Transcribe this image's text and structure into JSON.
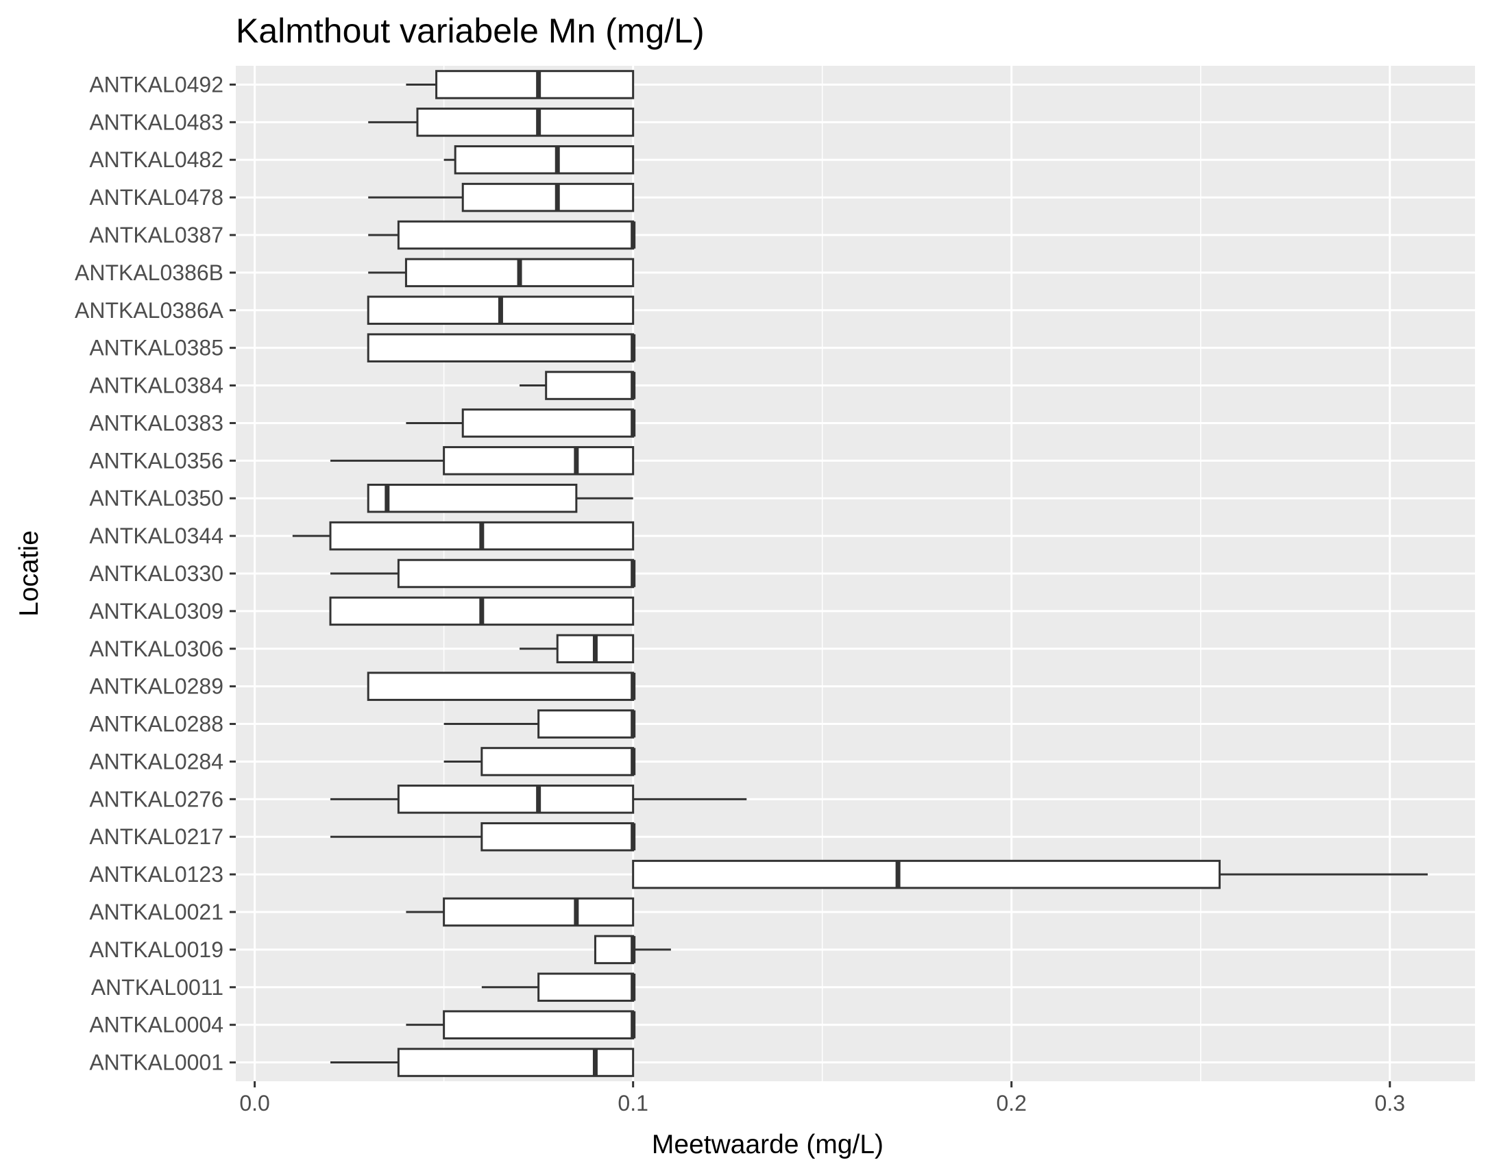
{
  "chart_data": {
    "type": "boxplot",
    "orientation": "horizontal",
    "title": "Kalmthout variabele Mn (mg/L)",
    "xlabel": "Meetwaarde (mg/L)",
    "ylabel": "Locatie",
    "xlim": [
      -0.005,
      0.3225
    ],
    "xticks": [
      0.0,
      0.1,
      0.2,
      0.3
    ],
    "xtick_labels": [
      "0.0",
      "0.1",
      "0.2",
      "0.3"
    ],
    "grid": true,
    "categories": [
      "ANTKAL0492",
      "ANTKAL0483",
      "ANTKAL0482",
      "ANTKAL0478",
      "ANTKAL0387",
      "ANTKAL0386B",
      "ANTKAL0386A",
      "ANTKAL0385",
      "ANTKAL0384",
      "ANTKAL0383",
      "ANTKAL0356",
      "ANTKAL0350",
      "ANTKAL0344",
      "ANTKAL0330",
      "ANTKAL0309",
      "ANTKAL0306",
      "ANTKAL0289",
      "ANTKAL0288",
      "ANTKAL0284",
      "ANTKAL0276",
      "ANTKAL0217",
      "ANTKAL0123",
      "ANTKAL0021",
      "ANTKAL0019",
      "ANTKAL0011",
      "ANTKAL0004",
      "ANTKAL0001"
    ],
    "boxes": [
      {
        "category": "ANTKAL0492",
        "whisker_low": 0.04,
        "q1": 0.048,
        "median": 0.075,
        "q3": 0.1,
        "whisker_high": 0.1
      },
      {
        "category": "ANTKAL0483",
        "whisker_low": 0.03,
        "q1": 0.043,
        "median": 0.075,
        "q3": 0.1,
        "whisker_high": 0.1
      },
      {
        "category": "ANTKAL0482",
        "whisker_low": 0.05,
        "q1": 0.053,
        "median": 0.08,
        "q3": 0.1,
        "whisker_high": 0.1
      },
      {
        "category": "ANTKAL0478",
        "whisker_low": 0.03,
        "q1": 0.055,
        "median": 0.08,
        "q3": 0.1,
        "whisker_high": 0.1
      },
      {
        "category": "ANTKAL0387",
        "whisker_low": 0.03,
        "q1": 0.038,
        "median": 0.1,
        "q3": 0.1,
        "whisker_high": 0.1
      },
      {
        "category": "ANTKAL0386B",
        "whisker_low": 0.03,
        "q1": 0.04,
        "median": 0.07,
        "q3": 0.1,
        "whisker_high": 0.1
      },
      {
        "category": "ANTKAL0386A",
        "whisker_low": 0.03,
        "q1": 0.03,
        "median": 0.065,
        "q3": 0.1,
        "whisker_high": 0.1
      },
      {
        "category": "ANTKAL0385",
        "whisker_low": 0.03,
        "q1": 0.03,
        "median": 0.1,
        "q3": 0.1,
        "whisker_high": 0.1
      },
      {
        "category": "ANTKAL0384",
        "whisker_low": 0.07,
        "q1": 0.077,
        "median": 0.1,
        "q3": 0.1,
        "whisker_high": 0.1
      },
      {
        "category": "ANTKAL0383",
        "whisker_low": 0.04,
        "q1": 0.055,
        "median": 0.1,
        "q3": 0.1,
        "whisker_high": 0.1
      },
      {
        "category": "ANTKAL0356",
        "whisker_low": 0.02,
        "q1": 0.05,
        "median": 0.085,
        "q3": 0.1,
        "whisker_high": 0.1
      },
      {
        "category": "ANTKAL0350",
        "whisker_low": 0.03,
        "q1": 0.03,
        "median": 0.035,
        "q3": 0.085,
        "whisker_high": 0.1
      },
      {
        "category": "ANTKAL0344",
        "whisker_low": 0.01,
        "q1": 0.02,
        "median": 0.06,
        "q3": 0.1,
        "whisker_high": 0.1
      },
      {
        "category": "ANTKAL0330",
        "whisker_low": 0.02,
        "q1": 0.038,
        "median": 0.1,
        "q3": 0.1,
        "whisker_high": 0.1
      },
      {
        "category": "ANTKAL0309",
        "whisker_low": 0.02,
        "q1": 0.02,
        "median": 0.06,
        "q3": 0.1,
        "whisker_high": 0.1
      },
      {
        "category": "ANTKAL0306",
        "whisker_low": 0.07,
        "q1": 0.08,
        "median": 0.09,
        "q3": 0.1,
        "whisker_high": 0.1
      },
      {
        "category": "ANTKAL0289",
        "whisker_low": 0.03,
        "q1": 0.03,
        "median": 0.1,
        "q3": 0.1,
        "whisker_high": 0.1
      },
      {
        "category": "ANTKAL0288",
        "whisker_low": 0.05,
        "q1": 0.075,
        "median": 0.1,
        "q3": 0.1,
        "whisker_high": 0.1
      },
      {
        "category": "ANTKAL0284",
        "whisker_low": 0.05,
        "q1": 0.06,
        "median": 0.1,
        "q3": 0.1,
        "whisker_high": 0.1
      },
      {
        "category": "ANTKAL0276",
        "whisker_low": 0.02,
        "q1": 0.038,
        "median": 0.075,
        "q3": 0.1,
        "whisker_high": 0.13
      },
      {
        "category": "ANTKAL0217",
        "whisker_low": 0.02,
        "q1": 0.06,
        "median": 0.1,
        "q3": 0.1,
        "whisker_high": 0.1
      },
      {
        "category": "ANTKAL0123",
        "whisker_low": 0.1,
        "q1": 0.1,
        "median": 0.17,
        "q3": 0.255,
        "whisker_high": 0.31
      },
      {
        "category": "ANTKAL0021",
        "whisker_low": 0.04,
        "q1": 0.05,
        "median": 0.085,
        "q3": 0.1,
        "whisker_high": 0.1
      },
      {
        "category": "ANTKAL0019",
        "whisker_low": 0.09,
        "q1": 0.09,
        "median": 0.1,
        "q3": 0.1,
        "whisker_high": 0.11
      },
      {
        "category": "ANTKAL0011",
        "whisker_low": 0.06,
        "q1": 0.075,
        "median": 0.1,
        "q3": 0.1,
        "whisker_high": 0.1
      },
      {
        "category": "ANTKAL0004",
        "whisker_low": 0.04,
        "q1": 0.05,
        "median": 0.1,
        "q3": 0.1,
        "whisker_high": 0.1
      },
      {
        "category": "ANTKAL0001",
        "whisker_low": 0.02,
        "q1": 0.038,
        "median": 0.09,
        "q3": 0.1,
        "whisker_high": 0.1
      }
    ],
    "colors": {
      "panel_background": "#ebebeb",
      "grid_major": "#ffffff",
      "box_fill": "#ffffff",
      "box_line": "#333333",
      "tick_label": "#4d4d4d",
      "tick_mark": "#333333"
    }
  }
}
